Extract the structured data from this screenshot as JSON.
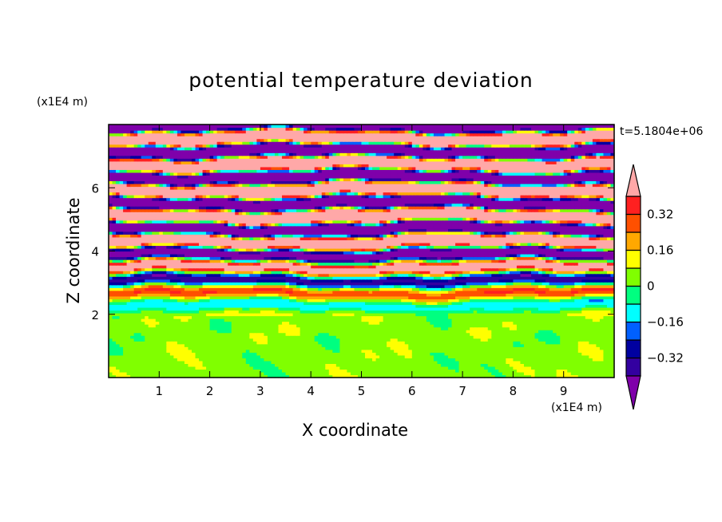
{
  "chart_data": {
    "type": "heatmap",
    "title": "potential temperature deviation",
    "xlabel": "X coordinate",
    "ylabel": "Z coordinate",
    "x_unit": "(x1E4 m)",
    "y_unit": "(x1E4 m)",
    "time_label": "t=5.1804e+06",
    "xlim": [
      0,
      10
    ],
    "ylim": [
      0,
      8
    ],
    "xticks": [
      "1",
      "2",
      "3",
      "4",
      "5",
      "6",
      "7",
      "8",
      "9"
    ],
    "yticks": [
      "2",
      "4",
      "6"
    ],
    "levels": [
      -0.4,
      -0.32,
      -0.24,
      -0.16,
      -0.08,
      0,
      0.08,
      0.16,
      0.24,
      0.32,
      0.4
    ],
    "colorbar_labels": [
      "0.32",
      "0.16",
      "0",
      "-0.16",
      "-0.32"
    ],
    "colors": [
      "#7f00aa",
      "#3300a0",
      "#0000a0",
      "#0060ff",
      "#00ffff",
      "#00ff80",
      "#80ff00",
      "#ffff00",
      "#ffa800",
      "#ff5000",
      "#ff2020",
      "#ffa8a8"
    ]
  }
}
